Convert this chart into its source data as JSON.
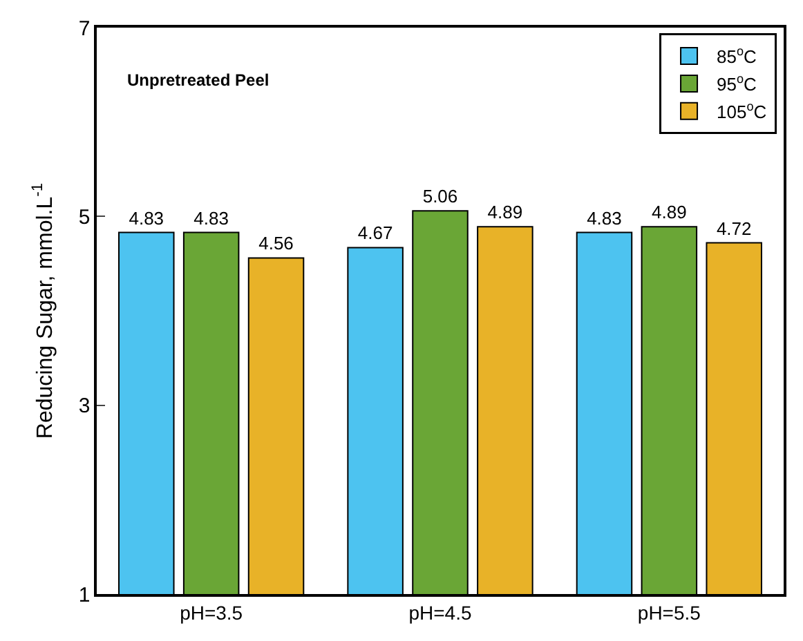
{
  "chart_data": {
    "type": "bar",
    "ylabel": "Reducing Sugar, mmol.L$^{-1}$",
    "categories": [
      "pH=3.5",
      "pH=4.5",
      "pH=5.5"
    ],
    "series": [
      {
        "name": "85$^{o}$C",
        "color": "#4dc3f0",
        "values": [
          4.83,
          4.67,
          4.83
        ]
      },
      {
        "name": "95$^{o}$C",
        "color": "#6aa636",
        "values": [
          4.83,
          5.06,
          4.89
        ]
      },
      {
        "name": "105$^{o}$C",
        "color": "#e8b228",
        "values": [
          4.56,
          4.89,
          4.72
        ]
      }
    ],
    "ylim": [
      1,
      7
    ],
    "yticks": [
      1,
      3,
      5,
      7
    ],
    "legend": "top right",
    "data_labels": true,
    "annotations": [
      "Unpretreated Peel"
    ]
  }
}
